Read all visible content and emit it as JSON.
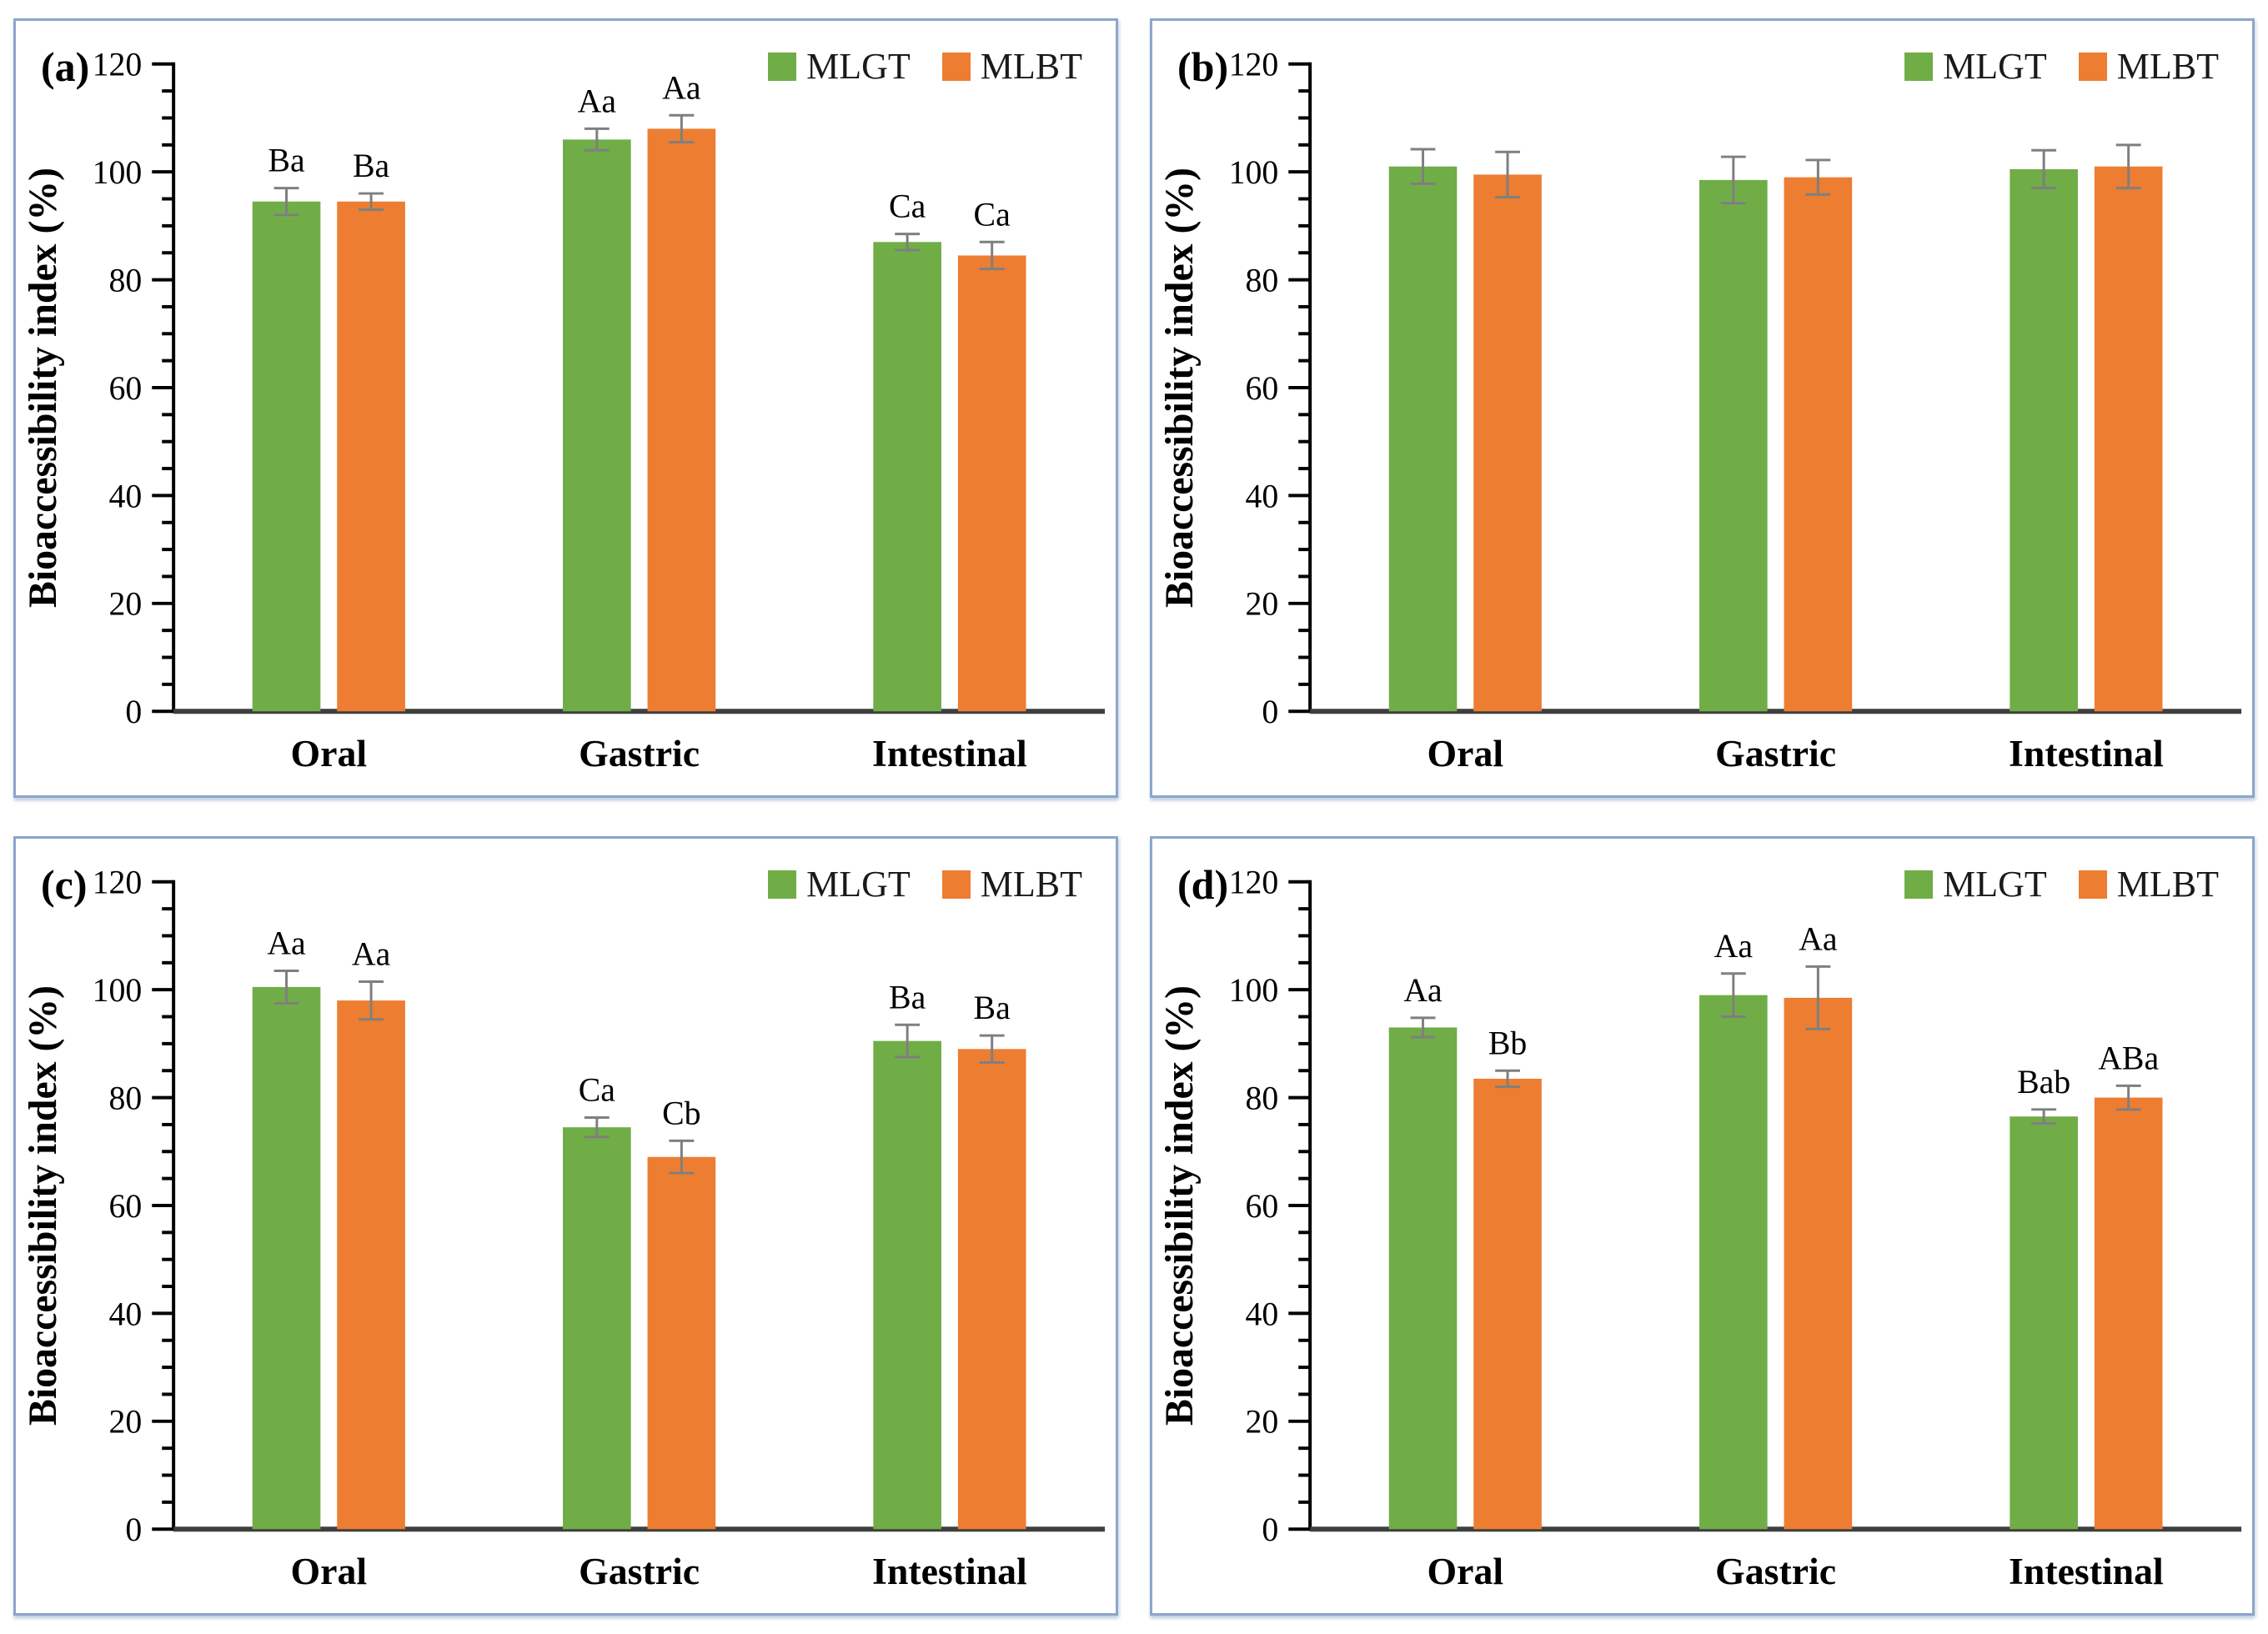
{
  "page": {
    "background": "#ffffff",
    "panel_border_color": "#8ba6cc"
  },
  "legend": {
    "series": [
      {
        "name": "MLGT",
        "color": "#70AD47"
      },
      {
        "name": "MLBT",
        "color": "#ED7D31"
      }
    ]
  },
  "colors": {
    "mlgt_green": "#70AD47",
    "mlbt_orange": "#ED7D31",
    "error_bar": "#7f7f7f",
    "axis": "#000000",
    "baseline": "#3f3f3f",
    "text": "#000000"
  },
  "chart_data": [
    {
      "panel": "(a)",
      "type": "bar",
      "ylabel": "Bioaccessibility index (%)",
      "ylim": [
        0,
        120
      ],
      "ytick_major": 20,
      "ytick_minor": 5,
      "grid": false,
      "legend_position": "top-right",
      "categories": [
        "Oral",
        "Gastric",
        "Intestinal"
      ],
      "series": [
        {
          "name": "MLGT",
          "color": "#70AD47",
          "values": [
            94.5,
            106,
            87
          ],
          "errors": [
            2.5,
            2,
            1.5
          ],
          "sig_labels": [
            "Ba",
            "Aa",
            "Ca"
          ]
        },
        {
          "name": "MLBT",
          "color": "#ED7D31",
          "values": [
            94.5,
            108,
            84.5
          ],
          "errors": [
            1.5,
            2.5,
            2.5
          ],
          "sig_labels": [
            "Ba",
            "Aa",
            "Ca"
          ]
        }
      ]
    },
    {
      "panel": "(b)",
      "type": "bar",
      "ylabel": "Bioaccessibility index (%)",
      "ylim": [
        0,
        120
      ],
      "ytick_major": 20,
      "ytick_minor": 5,
      "grid": false,
      "legend_position": "top-right",
      "categories": [
        "Oral",
        "Gastric",
        "Intestinal"
      ],
      "series": [
        {
          "name": "MLGT",
          "color": "#70AD47",
          "values": [
            101,
            98.5,
            100.5
          ],
          "errors": [
            3.2,
            4.3,
            3.5
          ],
          "sig_labels": [
            "",
            "",
            ""
          ]
        },
        {
          "name": "MLBT",
          "color": "#ED7D31",
          "values": [
            99.5,
            99,
            101
          ],
          "errors": [
            4.2,
            3.2,
            4
          ],
          "sig_labels": [
            "",
            "",
            ""
          ]
        }
      ]
    },
    {
      "panel": "(c)",
      "type": "bar",
      "ylabel": "Bioaccessibility index (%)",
      "ylim": [
        0,
        120
      ],
      "ytick_major": 20,
      "ytick_minor": 5,
      "grid": false,
      "legend_position": "top-right",
      "categories": [
        "Oral",
        "Gastric",
        "Intestinal"
      ],
      "series": [
        {
          "name": "MLGT",
          "color": "#70AD47",
          "values": [
            100.5,
            74.5,
            90.5
          ],
          "errors": [
            3,
            1.8,
            3
          ],
          "sig_labels": [
            "Aa",
            "Ca",
            "Ba"
          ]
        },
        {
          "name": "MLBT",
          "color": "#ED7D31",
          "values": [
            98,
            69,
            89
          ],
          "errors": [
            3.5,
            3,
            2.5
          ],
          "sig_labels": [
            "Aa",
            "Cb",
            "Ba"
          ]
        }
      ]
    },
    {
      "panel": "(d)",
      "type": "bar",
      "ylabel": "Bioaccessibility index (%)",
      "ylim": [
        0,
        120
      ],
      "ytick_major": 20,
      "ytick_minor": 5,
      "grid": false,
      "legend_position": "top-right",
      "categories": [
        "Oral",
        "Gastric",
        "Intestinal"
      ],
      "series": [
        {
          "name": "MLGT",
          "color": "#70AD47",
          "values": [
            93,
            99,
            76.5
          ],
          "errors": [
            1.8,
            4,
            1.3
          ],
          "sig_labels": [
            "Aa",
            "Aa",
            "Bab"
          ]
        },
        {
          "name": "MLBT",
          "color": "#ED7D31",
          "values": [
            83.5,
            98.5,
            80
          ],
          "errors": [
            1.5,
            5.8,
            2.2
          ],
          "sig_labels": [
            "Bb",
            "Aa",
            "ABa"
          ]
        }
      ]
    }
  ]
}
